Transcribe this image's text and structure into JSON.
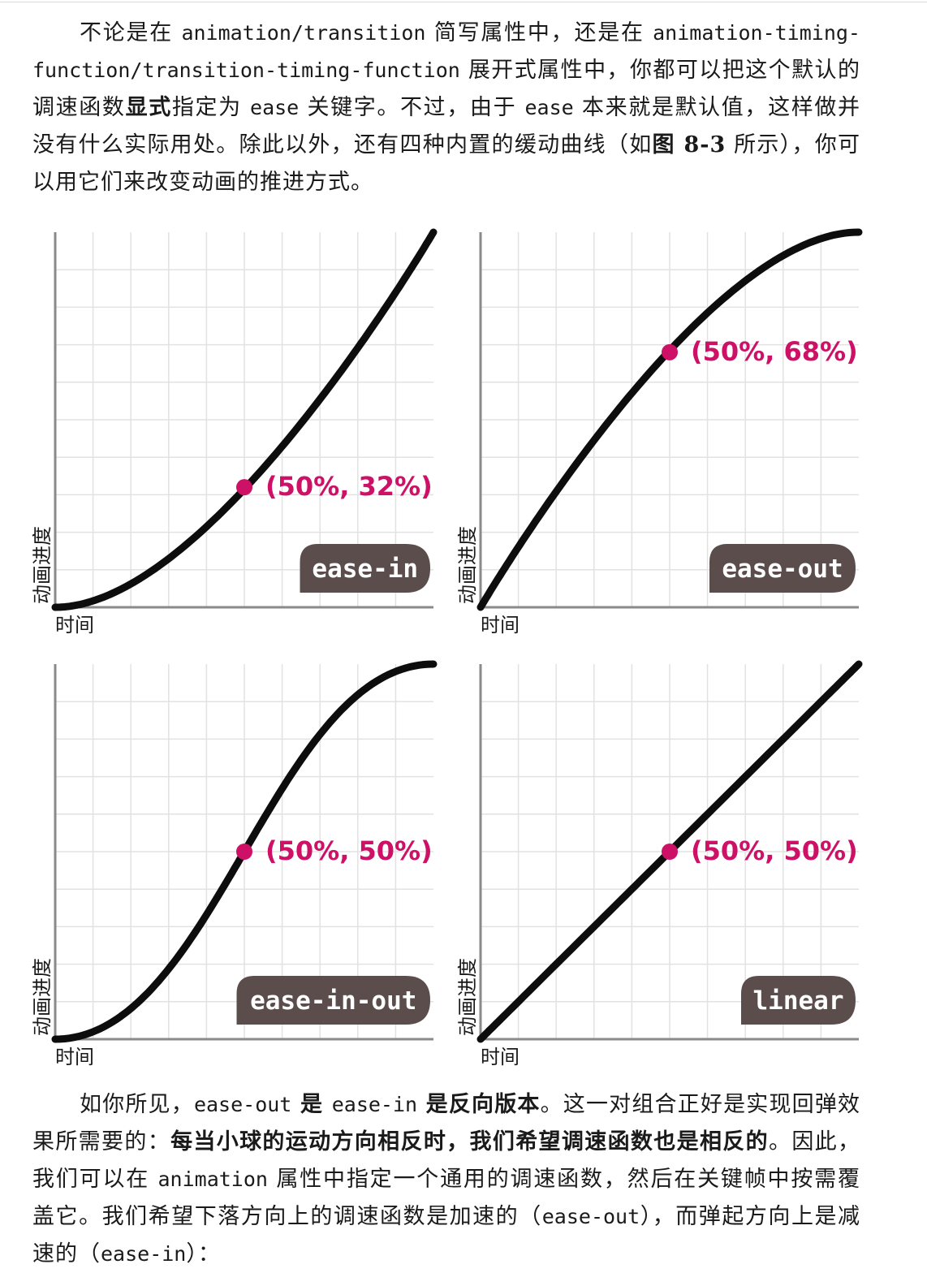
{
  "paragraph1": {
    "t1": "不论是在 ",
    "c1": "animation/transition",
    "t2": " 简写属性中，还是在 ",
    "c2": "animation-timing-function/transition-timing-function",
    "t3": " 展开式属性中，你都可以把这个默认的调速函数",
    "b1": "显式",
    "t4": "指定为 ",
    "c3": "ease",
    "t5": " 关键字。不过，由于 ",
    "c4": "ease",
    "t6": " 本来就是默认值，这样做并没有什么实际用处。除此以外，还有四种内置的缓动曲线（如",
    "b2": "图 8-3",
    "t7": " 所示），你可以用它们来改变动画的推进方式。"
  },
  "figure": {
    "y_axis_label": "动画进度",
    "x_axis_label": "时间",
    "colors": {
      "curve": "#0d0d0d",
      "point": "#cc1166",
      "badge": "#5a4d4b",
      "badge_text": "#ffffff",
      "grid": "#e2e2e2",
      "axis": "#8a8a8a"
    }
  },
  "chart_data": [
    {
      "type": "line",
      "label": "ease-in",
      "point_label": "(50%, 32%)",
      "point": [
        50,
        32
      ],
      "x": [
        0,
        25,
        50,
        75,
        100
      ],
      "y": [
        0,
        9,
        32,
        65,
        100
      ],
      "xlim": [
        0,
        100
      ],
      "ylim": [
        0,
        100
      ],
      "grid": true
    },
    {
      "type": "line",
      "label": "ease-out",
      "point_label": "(50%, 68%)",
      "point": [
        50,
        68
      ],
      "x": [
        0,
        25,
        50,
        75,
        100
      ],
      "y": [
        0,
        35,
        68,
        91,
        100
      ],
      "xlim": [
        0,
        100
      ],
      "ylim": [
        0,
        100
      ],
      "grid": true
    },
    {
      "type": "line",
      "label": "ease-in-out",
      "point_label": "(50%, 50%)",
      "point": [
        50,
        50
      ],
      "x": [
        0,
        25,
        50,
        75,
        100
      ],
      "y": [
        0,
        13,
        50,
        87,
        100
      ],
      "xlim": [
        0,
        100
      ],
      "ylim": [
        0,
        100
      ],
      "grid": true
    },
    {
      "type": "line",
      "label": "linear",
      "point_label": "(50%, 50%)",
      "point": [
        50,
        50
      ],
      "x": [
        0,
        25,
        50,
        75,
        100
      ],
      "y": [
        0,
        25,
        50,
        75,
        100
      ],
      "xlim": [
        0,
        100
      ],
      "ylim": [
        0,
        100
      ],
      "grid": true
    }
  ],
  "paragraph2": {
    "t1": "如你所见，",
    "c1": "ease-out",
    "b1": " 是 ",
    "c2": "ease-in",
    "b2": " 是反向版本",
    "t2": "。这一对组合正好是实现回弹效果所需要的：",
    "b3": "每当小球的运动方向相反时，我们希望调速函数也是相反的",
    "t3": "。因此，我们可以在 ",
    "c3": "animation",
    "t4": " 属性中指定一个通用的调速函数，然后在关键帧中按需覆盖它。我们希望下落方向上的调速函数是加速的（",
    "c4": "ease-out",
    "t5": "），而弹起方向上是减速的（",
    "c5": "ease-in",
    "t6": "）："
  }
}
